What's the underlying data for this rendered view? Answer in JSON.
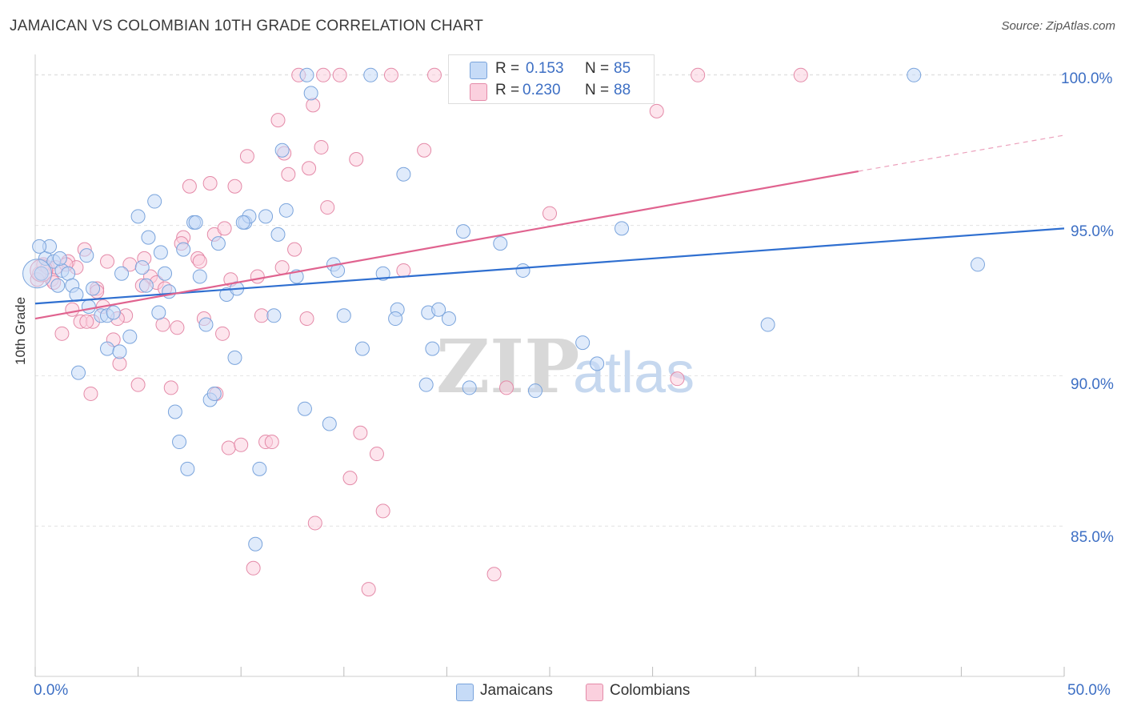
{
  "title": "JAMAICAN VS COLOMBIAN 10TH GRADE CORRELATION CHART",
  "source": "Source: ZipAtlas.com",
  "watermark": {
    "zip": "ZIP",
    "atlas": "atlas"
  },
  "legend": {
    "rows": [
      {
        "r_label": "R =",
        "r_value": "0.153",
        "n_label": "N =",
        "n_value": "85",
        "color": "#a9c8f2"
      },
      {
        "r_label": "R =",
        "r_value": "0.230",
        "n_label": "N =",
        "n_value": "88",
        "color": "#f6b8cc"
      }
    ]
  },
  "bottom_legend": [
    {
      "label": "Jamaicans",
      "color": "#a9c8f2"
    },
    {
      "label": "Colombians",
      "color": "#f6b8cc"
    }
  ],
  "chart_data": {
    "type": "scatter",
    "title": "JAMAICAN VS COLOMBIAN 10TH GRADE CORRELATION CHART",
    "xlabel": "",
    "ylabel": "10th Grade",
    "xlim": [
      0,
      50
    ],
    "ylim": [
      80.0,
      100.9
    ],
    "x_tick_labels": [
      "0.0%",
      "50.0%"
    ],
    "y_ticks": [
      85,
      90,
      95,
      100
    ],
    "y_tick_labels": [
      "85.0%",
      "90.0%",
      "95.0%",
      "100.0%"
    ],
    "grid": true,
    "series": [
      {
        "name": "Jamaicans",
        "color": "#a9c8f2",
        "stroke": "#7aa4dc",
        "trend": {
          "x": [
            0,
            50
          ],
          "y": [
            92.4,
            94.9
          ],
          "color": "#2f6fd0"
        },
        "points": [
          [
            0.3,
            93.4
          ],
          [
            0.5,
            93.9
          ],
          [
            0.7,
            94.3
          ],
          [
            0.9,
            93.8
          ],
          [
            1.1,
            93.0
          ],
          [
            1.3,
            93.5
          ],
          [
            1.6,
            93.4
          ],
          [
            1.8,
            93.0
          ],
          [
            2.0,
            92.7
          ],
          [
            2.5,
            94.0
          ],
          [
            2.6,
            92.3
          ],
          [
            2.8,
            92.9
          ],
          [
            3.2,
            92.0
          ],
          [
            3.5,
            92.0
          ],
          [
            3.8,
            92.1
          ],
          [
            4.2,
            93.4
          ],
          [
            4.6,
            91.3
          ],
          [
            5.0,
            95.3
          ],
          [
            5.2,
            93.6
          ],
          [
            5.4,
            93.0
          ],
          [
            5.5,
            94.6
          ],
          [
            5.8,
            95.8
          ],
          [
            6.0,
            92.1
          ],
          [
            6.3,
            93.4
          ],
          [
            6.5,
            92.8
          ],
          [
            6.8,
            88.8
          ],
          [
            7.0,
            87.8
          ],
          [
            7.2,
            94.2
          ],
          [
            7.4,
            86.9
          ],
          [
            7.7,
            95.1
          ],
          [
            8.0,
            93.3
          ],
          [
            8.3,
            91.7
          ],
          [
            8.5,
            89.2
          ],
          [
            8.7,
            89.4
          ],
          [
            8.9,
            94.4
          ],
          [
            9.3,
            92.7
          ],
          [
            9.7,
            90.6
          ],
          [
            9.8,
            92.9
          ],
          [
            10.2,
            95.1
          ],
          [
            10.4,
            95.3
          ],
          [
            10.7,
            84.4
          ],
          [
            10.9,
            86.9
          ],
          [
            11.2,
            95.3
          ],
          [
            11.6,
            92.0
          ],
          [
            11.8,
            94.7
          ],
          [
            12.0,
            97.5
          ],
          [
            12.2,
            95.5
          ],
          [
            12.7,
            93.3
          ],
          [
            13.1,
            88.9
          ],
          [
            13.2,
            100.0
          ],
          [
            13.4,
            99.4
          ],
          [
            14.3,
            88.4
          ],
          [
            14.5,
            93.7
          ],
          [
            14.7,
            93.5
          ],
          [
            15.0,
            92.0
          ],
          [
            15.9,
            90.9
          ],
          [
            16.3,
            100.0
          ],
          [
            16.9,
            93.4
          ],
          [
            17.6,
            92.2
          ],
          [
            17.5,
            91.9
          ],
          [
            17.9,
            96.7
          ],
          [
            19.0,
            89.7
          ],
          [
            19.1,
            92.1
          ],
          [
            19.3,
            90.9
          ],
          [
            19.6,
            92.2
          ],
          [
            20.1,
            91.9
          ],
          [
            20.8,
            94.8
          ],
          [
            21.1,
            89.6
          ],
          [
            22.6,
            94.4
          ],
          [
            23.7,
            93.5
          ],
          [
            24.3,
            89.5
          ],
          [
            26.6,
            91.1
          ],
          [
            27.3,
            90.4
          ],
          [
            28.5,
            94.9
          ],
          [
            35.6,
            91.7
          ],
          [
            42.7,
            100.0
          ],
          [
            45.8,
            93.7
          ],
          [
            0.2,
            94.3
          ],
          [
            1.2,
            93.9
          ],
          [
            2.1,
            90.1
          ],
          [
            3.5,
            90.9
          ],
          [
            4.1,
            90.8
          ],
          [
            6.1,
            94.1
          ],
          [
            7.8,
            95.1
          ],
          [
            10.1,
            95.1
          ]
        ]
      },
      {
        "name": "Colombians",
        "color": "#f6b8cc",
        "stroke": "#e48aa8",
        "trend": {
          "x": [
            0,
            40
          ],
          "y": [
            91.9,
            96.8
          ],
          "color": "#e0638f",
          "dashed_to": [
            50,
            98.0
          ]
        },
        "points": [
          [
            0.2,
            93.4
          ],
          [
            0.4,
            93.7
          ],
          [
            0.6,
            93.6
          ],
          [
            0.8,
            93.2
          ],
          [
            1.0,
            93.6
          ],
          [
            1.3,
            91.4
          ],
          [
            1.6,
            93.8
          ],
          [
            1.8,
            92.2
          ],
          [
            2.0,
            93.6
          ],
          [
            2.2,
            91.8
          ],
          [
            2.4,
            94.2
          ],
          [
            2.7,
            89.4
          ],
          [
            2.8,
            91.8
          ],
          [
            3.0,
            92.9
          ],
          [
            3.3,
            92.3
          ],
          [
            3.5,
            93.8
          ],
          [
            3.8,
            91.2
          ],
          [
            4.1,
            90.4
          ],
          [
            4.4,
            92.0
          ],
          [
            4.6,
            93.7
          ],
          [
            5.0,
            89.7
          ],
          [
            5.3,
            93.9
          ],
          [
            5.6,
            93.3
          ],
          [
            5.9,
            93.1
          ],
          [
            6.2,
            91.7
          ],
          [
            6.6,
            89.6
          ],
          [
            6.9,
            91.6
          ],
          [
            7.2,
            94.6
          ],
          [
            7.5,
            96.3
          ],
          [
            7.9,
            93.9
          ],
          [
            8.2,
            91.9
          ],
          [
            8.5,
            96.4
          ],
          [
            8.8,
            89.4
          ],
          [
            9.1,
            91.4
          ],
          [
            9.4,
            87.6
          ],
          [
            9.7,
            96.3
          ],
          [
            10.0,
            87.7
          ],
          [
            10.3,
            97.3
          ],
          [
            10.6,
            83.6
          ],
          [
            11.0,
            92.0
          ],
          [
            11.2,
            87.8
          ],
          [
            11.5,
            87.8
          ],
          [
            11.8,
            98.5
          ],
          [
            12.1,
            97.4
          ],
          [
            12.3,
            96.7
          ],
          [
            12.6,
            94.2
          ],
          [
            12.8,
            100.0
          ],
          [
            13.2,
            91.9
          ],
          [
            13.3,
            96.9
          ],
          [
            13.6,
            85.1
          ],
          [
            13.9,
            97.6
          ],
          [
            14.2,
            95.6
          ],
          [
            14.8,
            100.0
          ],
          [
            15.3,
            86.6
          ],
          [
            15.6,
            97.2
          ],
          [
            15.8,
            88.1
          ],
          [
            16.2,
            82.9
          ],
          [
            16.6,
            87.4
          ],
          [
            16.9,
            85.5
          ],
          [
            17.3,
            100.0
          ],
          [
            17.9,
            93.5
          ],
          [
            18.9,
            97.5
          ],
          [
            19.4,
            100.0
          ],
          [
            21.2,
            100.0
          ],
          [
            22.3,
            83.4
          ],
          [
            22.9,
            89.6
          ],
          [
            25.0,
            95.4
          ],
          [
            30.2,
            98.8
          ],
          [
            31.2,
            89.9
          ],
          [
            32.2,
            100.0
          ],
          [
            37.2,
            100.0
          ],
          [
            0.1,
            93.2
          ],
          [
            0.9,
            93.1
          ],
          [
            1.5,
            93.7
          ],
          [
            2.5,
            91.8
          ],
          [
            3.0,
            92.8
          ],
          [
            4.0,
            91.9
          ],
          [
            5.2,
            93.0
          ],
          [
            6.3,
            92.9
          ],
          [
            7.1,
            94.4
          ],
          [
            8.0,
            93.8
          ],
          [
            8.7,
            94.7
          ],
          [
            9.2,
            94.9
          ],
          [
            9.5,
            93.2
          ],
          [
            10.8,
            93.3
          ],
          [
            12.0,
            93.6
          ],
          [
            13.5,
            99.0
          ],
          [
            14.0,
            100.0
          ]
        ]
      }
    ]
  }
}
